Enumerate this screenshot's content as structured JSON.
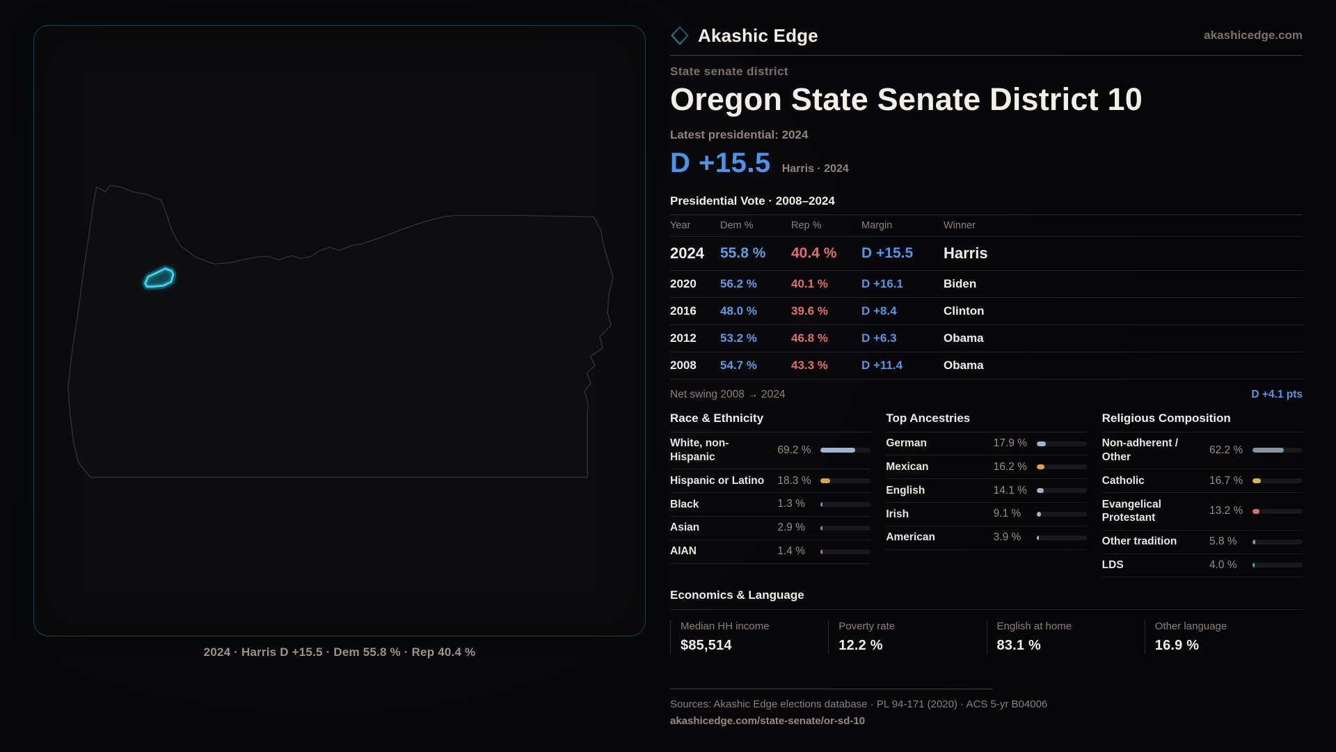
{
  "brand": {
    "name": "Akashic Edge",
    "domain": "akashicedge.com",
    "logo_icon": "diamond-outline-icon",
    "accent_teal": "#38d6f1",
    "dem_blue": "#4b94ec",
    "rep_red": "#e26e6e"
  },
  "header": {
    "kicker": "State senate district",
    "title": "Oregon State Senate District 10",
    "latest_label": "Latest presidential: 2024",
    "headline_margin": "D +15.5",
    "headline_context": "Harris · 2024"
  },
  "vote_table": {
    "title": "Presidential Vote · 2008–2024",
    "columns": [
      "Year",
      "Dem %",
      "Rep %",
      "Margin",
      "Winner"
    ],
    "rows": [
      {
        "year": "2024",
        "dem": "55.8 %",
        "rep": "40.4 %",
        "margin": "D +15.5",
        "winner": "Harris"
      },
      {
        "year": "2020",
        "dem": "56.2 %",
        "rep": "40.1 %",
        "margin": "D +16.1",
        "winner": "Biden"
      },
      {
        "year": "2016",
        "dem": "48.0 %",
        "rep": "39.6 %",
        "margin": "D +8.4",
        "winner": "Clinton"
      },
      {
        "year": "2012",
        "dem": "53.2 %",
        "rep": "46.8 %",
        "margin": "D +6.3",
        "winner": "Obama"
      },
      {
        "year": "2008",
        "dem": "54.7 %",
        "rep": "43.3 %",
        "margin": "D +11.4",
        "winner": "Obama"
      }
    ],
    "net_swing_label": "Net swing 2008 → 2024",
    "net_swing_value": "D +4.1 pts"
  },
  "demographics": {
    "sections": [
      {
        "title": "Race & Ethnicity",
        "rows": [
          {
            "label": "White, non-Hispanic",
            "value": "69.2 %",
            "pct": 69.2,
            "color": "#9db4d2"
          },
          {
            "label": "Hispanic or Latino",
            "value": "18.3 %",
            "pct": 18.3,
            "color": "#e2a33c"
          },
          {
            "label": "Black",
            "value": "1.3 %",
            "pct": 1.3,
            "color": "#8b84d8"
          },
          {
            "label": "Asian",
            "value": "2.9 %",
            "pct": 2.9,
            "color": "#35bd85"
          },
          {
            "label": "AIAN",
            "value": "1.4 %",
            "pct": 1.4,
            "color": "#c8802a"
          }
        ]
      },
      {
        "title": "Top Ancestries",
        "rows": [
          {
            "label": "German",
            "value": "17.9 %",
            "pct": 17.9,
            "color": "#9db4d2"
          },
          {
            "label": "Mexican",
            "value": "16.2 %",
            "pct": 16.2,
            "color": "#e2a33c"
          },
          {
            "label": "English",
            "value": "14.1 %",
            "pct": 14.1,
            "color": "#9db4d2"
          },
          {
            "label": "Irish",
            "value": "9.1 %",
            "pct": 9.1,
            "color": "#9db4d2"
          },
          {
            "label": "American",
            "value": "3.9 %",
            "pct": 3.9,
            "color": "#9db4d2"
          }
        ]
      },
      {
        "title": "Religious Composition",
        "rows": [
          {
            "label": "Non-adherent / Other",
            "value": "62.2 %",
            "pct": 62.2,
            "color": "#8493a8"
          },
          {
            "label": "Catholic",
            "value": "16.7 %",
            "pct": 16.7,
            "color": "#d8b93f"
          },
          {
            "label": "Evangelical Protestant",
            "value": "13.2 %",
            "pct": 13.2,
            "color": "#dd6f6a"
          },
          {
            "label": "Other tradition",
            "value": "5.8 %",
            "pct": 5.8,
            "color": "#8493a8"
          },
          {
            "label": "LDS",
            "value": "4.0 %",
            "pct": 4.0,
            "color": "#2fbcab"
          }
        ]
      }
    ]
  },
  "economics": {
    "title": "Economics & Language",
    "stats": [
      {
        "label": "Median HH income",
        "value": "$85,514"
      },
      {
        "label": "Poverty rate",
        "value": "12.2 %"
      },
      {
        "label": "English at home",
        "value": "83.1 %"
      },
      {
        "label": "Other language",
        "value": "16.9 %"
      }
    ]
  },
  "map": {
    "caption": "2024 · Harris D +15.5 · Dem 55.8 % · Rep 40.4 %",
    "state": "Oregon",
    "district_highlight_color": "#38d6f1"
  },
  "footer": {
    "sources": "Sources: Akashic Edge elections database · PL 94-171 (2020) · ACS 5-yr B04006",
    "url": "akashicedge.com/state-senate/or-sd-10"
  }
}
